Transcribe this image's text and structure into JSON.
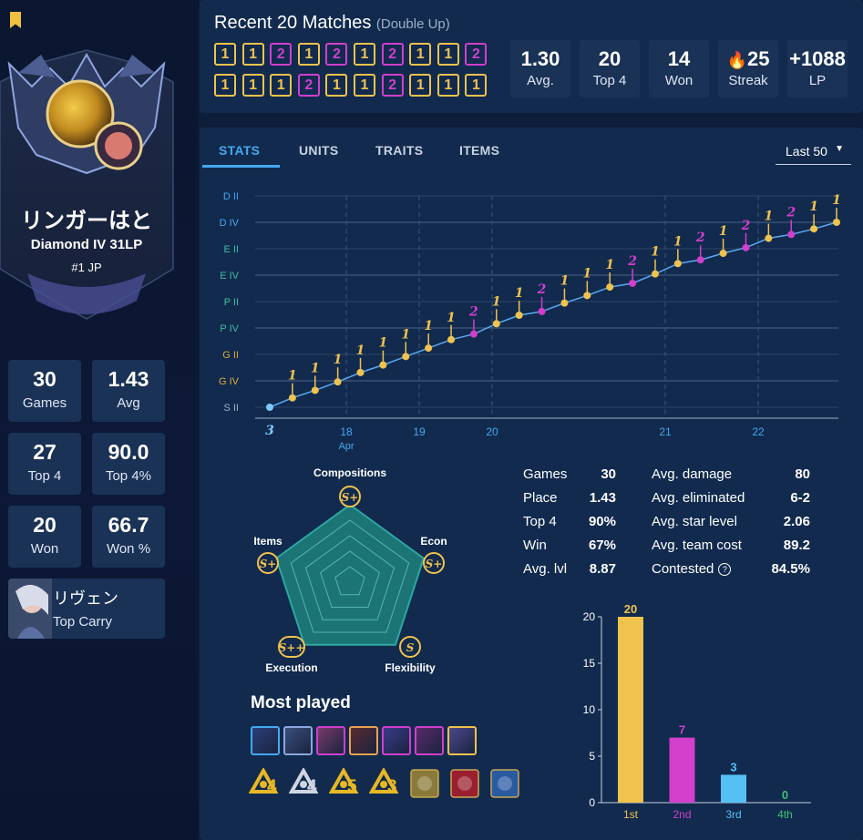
{
  "profile": {
    "name": "リンガーはと",
    "rank": "Diamond IV 31LP",
    "region_rank": "#1 JP",
    "stats": [
      {
        "value": "30",
        "label": "Games"
      },
      {
        "value": "1.43",
        "label": "Avg"
      },
      {
        "value": "27",
        "label": "Top 4"
      },
      {
        "value": "90.0",
        "label": "Top 4%"
      },
      {
        "value": "20",
        "label": "Won"
      },
      {
        "value": "66.7",
        "label": "Won %"
      }
    ],
    "top_carry": {
      "name": "リヴェン",
      "label": "Top Carry"
    }
  },
  "recent": {
    "title": "Recent 20 Matches",
    "mode": "(Double Up)",
    "placements": [
      "1",
      "1",
      "2",
      "1",
      "2",
      "1",
      "2",
      "1",
      "1",
      "2",
      "1",
      "1",
      "1",
      "2",
      "1",
      "1",
      "2",
      "1",
      "1",
      "1"
    ],
    "summary": [
      {
        "value": "1.30",
        "label": "Avg."
      },
      {
        "value": "20",
        "label": "Top 4"
      },
      {
        "value": "14",
        "label": "Won"
      },
      {
        "value": "25",
        "label": "Streak"
      },
      {
        "value": "+1088",
        "label": "LP"
      }
    ]
  },
  "tabs": [
    "STATS",
    "UNITS",
    "TRAITS",
    "ITEMS"
  ],
  "filter": "Last 50",
  "lp_chart": {
    "y_ticks": [
      "D II",
      "D IV",
      "E II",
      "E IV",
      "P II",
      "P IV",
      "G II",
      "G IV",
      "S II"
    ],
    "x_ticks": [
      "18",
      "19",
      "20",
      "21",
      "22"
    ],
    "x_sub": "Apr",
    "first_label": "3",
    "points": [
      {
        "p": "3",
        "y": 0.5
      },
      {
        "p": "1",
        "y": 1.0
      },
      {
        "p": "1",
        "y": 1.4
      },
      {
        "p": "1",
        "y": 1.85
      },
      {
        "p": "1",
        "y": 2.35
      },
      {
        "p": "1",
        "y": 2.75
      },
      {
        "p": "1",
        "y": 3.2
      },
      {
        "p": "1",
        "y": 3.65
      },
      {
        "p": "1",
        "y": 4.1
      },
      {
        "p": "2",
        "y": 4.4
      },
      {
        "p": "1",
        "y": 4.95
      },
      {
        "p": "1",
        "y": 5.4
      },
      {
        "p": "2",
        "y": 5.6
      },
      {
        "p": "1",
        "y": 6.05
      },
      {
        "p": "1",
        "y": 6.45
      },
      {
        "p": "1",
        "y": 6.9
      },
      {
        "p": "2",
        "y": 7.1
      },
      {
        "p": "1",
        "y": 7.6
      },
      {
        "p": "1",
        "y": 8.15
      },
      {
        "p": "2",
        "y": 8.35
      },
      {
        "p": "1",
        "y": 8.7
      },
      {
        "p": "2",
        "y": 9.0
      },
      {
        "p": "1",
        "y": 9.5
      },
      {
        "p": "2",
        "y": 9.7
      },
      {
        "p": "1",
        "y": 10.0
      },
      {
        "p": "1",
        "y": 10.35
      }
    ]
  },
  "playstyle": {
    "axes": [
      {
        "label": "Compositions",
        "grade": "S+"
      },
      {
        "label": "Econ",
        "grade": "S+"
      },
      {
        "label": "Flexibility",
        "grade": "S"
      },
      {
        "label": "Execution",
        "grade": "S++"
      },
      {
        "label": "Items",
        "grade": "S+"
      }
    ]
  },
  "summary_left": [
    {
      "label": "Games",
      "value": "30"
    },
    {
      "label": "Place",
      "value": "1.43"
    },
    {
      "label": "Top 4",
      "value": "90%"
    },
    {
      "label": "Win",
      "value": "67%"
    },
    {
      "label": "Avg. lvl",
      "value": "8.87"
    }
  ],
  "summary_right": [
    {
      "label": "Avg. damage",
      "value": "80"
    },
    {
      "label": "Avg. eliminated",
      "value": "6-2"
    },
    {
      "label": "Avg. star level",
      "value": "2.06"
    },
    {
      "label": "Avg. team cost",
      "value": "89.2"
    },
    {
      "label": "Contested",
      "value": "84.5%"
    }
  ],
  "most_played": {
    "title": "Most played",
    "trait_counts": [
      "4",
      "4",
      "5",
      "3"
    ]
  },
  "chart_data": {
    "type": "bar",
    "categories": [
      "1st",
      "2nd",
      "3rd",
      "4th"
    ],
    "values": [
      20,
      7,
      3,
      0
    ],
    "ylim": [
      0,
      20
    ],
    "y_ticks": [
      0,
      5,
      10,
      15,
      20
    ],
    "colors": [
      "#f0c24e",
      "#d13fcb",
      "#56c0f5",
      "#3fc07a"
    ]
  },
  "colors": {
    "gold": "#f0c24e",
    "purple": "#d13fcb",
    "accent": "#45a8f0"
  }
}
